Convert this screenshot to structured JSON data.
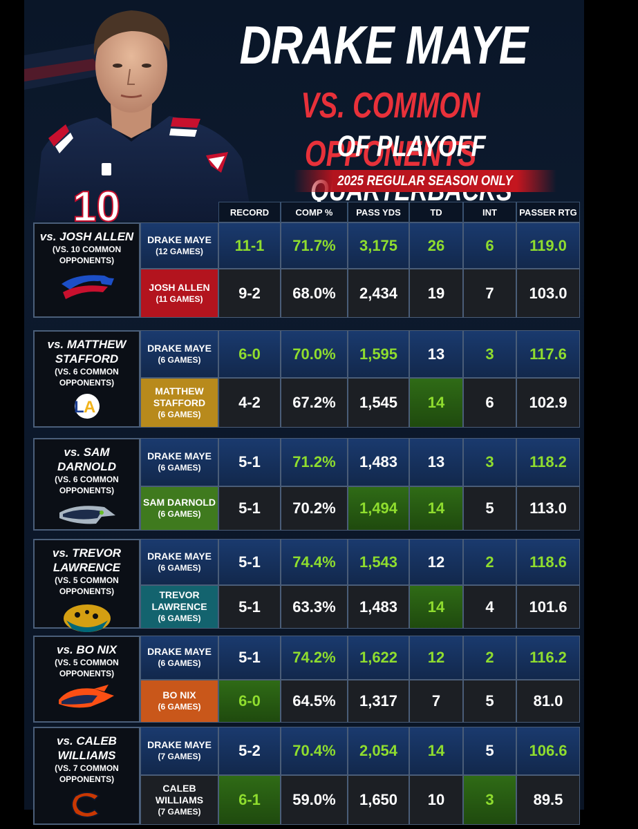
{
  "header": {
    "title": "DRAKE MAYE",
    "subtitle": "VS. COMMON OPPONENTS",
    "subtitle2": "OF PLAYOFF QUARTERBACKS",
    "banner": "2025 REGULAR SEASON ONLY"
  },
  "jersey_number": "10",
  "columns": [
    "RECORD",
    "COMP %",
    "PASS YDS",
    "TD",
    "INT",
    "PASSER RTG"
  ],
  "colors": {
    "accent_red": "#e8313a",
    "stat_green": "#8fdd2e",
    "navy": "#12284c"
  },
  "matchups": [
    {
      "label": "vs. JOSH ALLEN",
      "sub1": "(VS. 10 COMMON",
      "sub2": "OPPONENTS)",
      "logo": "bills-logo",
      "maye": {
        "name": "DRAKE MAYE",
        "games": "(12 GAMES)",
        "record": "11-1",
        "comp": "71.7%",
        "yds": "3,175",
        "td": "26",
        "int": "6",
        "rtg": "119.0"
      },
      "opp": {
        "name1": "JOSH ALLEN",
        "name2": "",
        "games": "(11 GAMES)",
        "color": "#b3141e",
        "record": "9-2",
        "comp": "68.0%",
        "yds": "2,434",
        "td": "19",
        "int": "7",
        "rtg": "103.0"
      }
    },
    {
      "label": "vs. MATTHEW",
      "label2": "STAFFORD",
      "sub1": "(VS. 6 COMMON",
      "sub2": "OPPONENTS)",
      "logo": "rams-logo",
      "maye": {
        "name": "DRAKE MAYE",
        "games": "(6 GAMES)",
        "record": "6-0",
        "comp": "70.0%",
        "yds": "1,595",
        "td": "13",
        "int": "3",
        "rtg": "117.6"
      },
      "opp": {
        "name1": "MATTHEW",
        "name2": "STAFFORD",
        "games": "(6 GAMES)",
        "color": "#b88a1c",
        "record": "4-2",
        "comp": "67.2%",
        "yds": "1,545",
        "td": "14",
        "int": "6",
        "rtg": "102.9"
      }
    },
    {
      "label": "vs. SAM DARNOLD",
      "sub1": "(VS. 6 COMMON",
      "sub2": "OPPONENTS)",
      "logo": "seahawks-logo",
      "maye": {
        "name": "DRAKE MAYE",
        "games": "(6 GAMES)",
        "record": "5-1",
        "comp": "71.2%",
        "yds": "1,483",
        "td": "13",
        "int": "3",
        "rtg": "118.2"
      },
      "opp": {
        "name1": "SAM DARNOLD",
        "name2": "",
        "games": "(6 GAMES)",
        "color": "#3f7a1e",
        "record": "5-1",
        "comp": "70.2%",
        "yds": "1,494",
        "td": "14",
        "int": "5",
        "rtg": "113.0"
      }
    },
    {
      "label": "vs. TREVOR LAWRENCE",
      "sub1": "(VS. 5 COMMON",
      "sub2": "OPPONENTS)",
      "logo": "jaguars-logo",
      "maye": {
        "name": "DRAKE MAYE",
        "games": "(6 GAMES)",
        "record": "5-1",
        "comp": "74.4%",
        "yds": "1,543",
        "td": "12",
        "int": "2",
        "rtg": "118.6"
      },
      "opp": {
        "name1": "TREVOR",
        "name2": "LAWRENCE",
        "games": "(6 GAMES)",
        "color": "#13636e",
        "record": "5-1",
        "comp": "63.3%",
        "yds": "1,483",
        "td": "14",
        "int": "4",
        "rtg": "101.6"
      }
    },
    {
      "label": "vs. BO NIX",
      "sub1": "(VS. 5 COMMON",
      "sub2": "OPPONENTS)",
      "logo": "broncos-logo",
      "maye": {
        "name": "DRAKE MAYE",
        "games": "(6 GAMES)",
        "record": "5-1",
        "comp": "74.2%",
        "yds": "1,622",
        "td": "12",
        "int": "2",
        "rtg": "116.2"
      },
      "opp": {
        "name1": "BO NIX",
        "name2": "",
        "games": "(6 GAMES)",
        "color": "#c9571a",
        "record": "6-0",
        "comp": "64.5%",
        "yds": "1,317",
        "td": "7",
        "int": "5",
        "rtg": "81.0"
      }
    },
    {
      "label": "vs. CALEB WILLIAMS",
      "sub1": "(VS. 7 COMMON",
      "sub2": "OPPONENTS)",
      "logo": "bears-logo",
      "maye": {
        "name": "DRAKE MAYE",
        "games": "(7 GAMES)",
        "record": "5-2",
        "comp": "70.4%",
        "yds": "2,054",
        "td": "14",
        "int": "5",
        "rtg": "106.6"
      },
      "opp": {
        "name1": "CALEB",
        "name2": "WILLIAMS",
        "games": "(7 GAMES)",
        "color": "#1c1f24",
        "record": "6-1",
        "comp": "59.0%",
        "yds": "1,650",
        "td": "10",
        "int": "3",
        "rtg": "89.5"
      }
    }
  ]
}
